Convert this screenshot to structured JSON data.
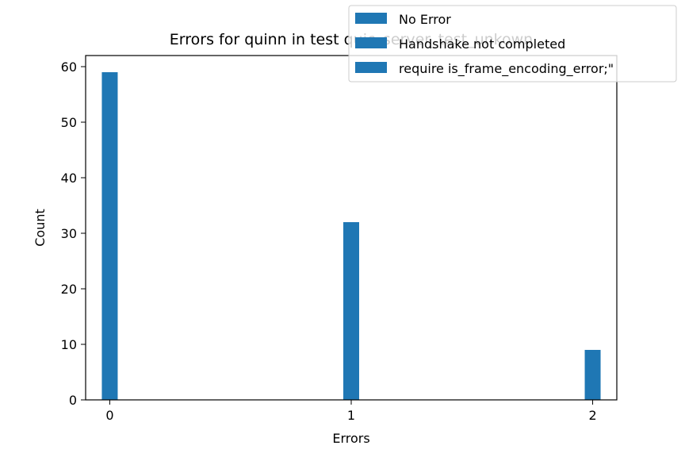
{
  "chart_data": {
    "type": "bar",
    "title": "Errors for quinn in test quic_server_test_unkown",
    "xlabel": "Errors",
    "ylabel": "Count",
    "x_ticks": [
      "0",
      "1",
      "2"
    ],
    "y_ticks": [
      "0",
      "10",
      "20",
      "30",
      "40",
      "50",
      "60"
    ],
    "xlim": [
      -0.1,
      2.1
    ],
    "ylim": [
      0,
      62
    ],
    "grid": false,
    "legend_position": "top-right",
    "series": [
      {
        "name": "No Error",
        "x": [
          0
        ],
        "values": [
          59
        ],
        "color": "#1f77b4"
      },
      {
        "name": "Handshake not completed",
        "x": [
          1
        ],
        "values": [
          32
        ],
        "color": "#1f77b4"
      },
      {
        "name": "require is_frame_encoding_error;\"",
        "x": [
          2
        ],
        "values": [
          9
        ],
        "color": "#1f77b4"
      }
    ]
  }
}
